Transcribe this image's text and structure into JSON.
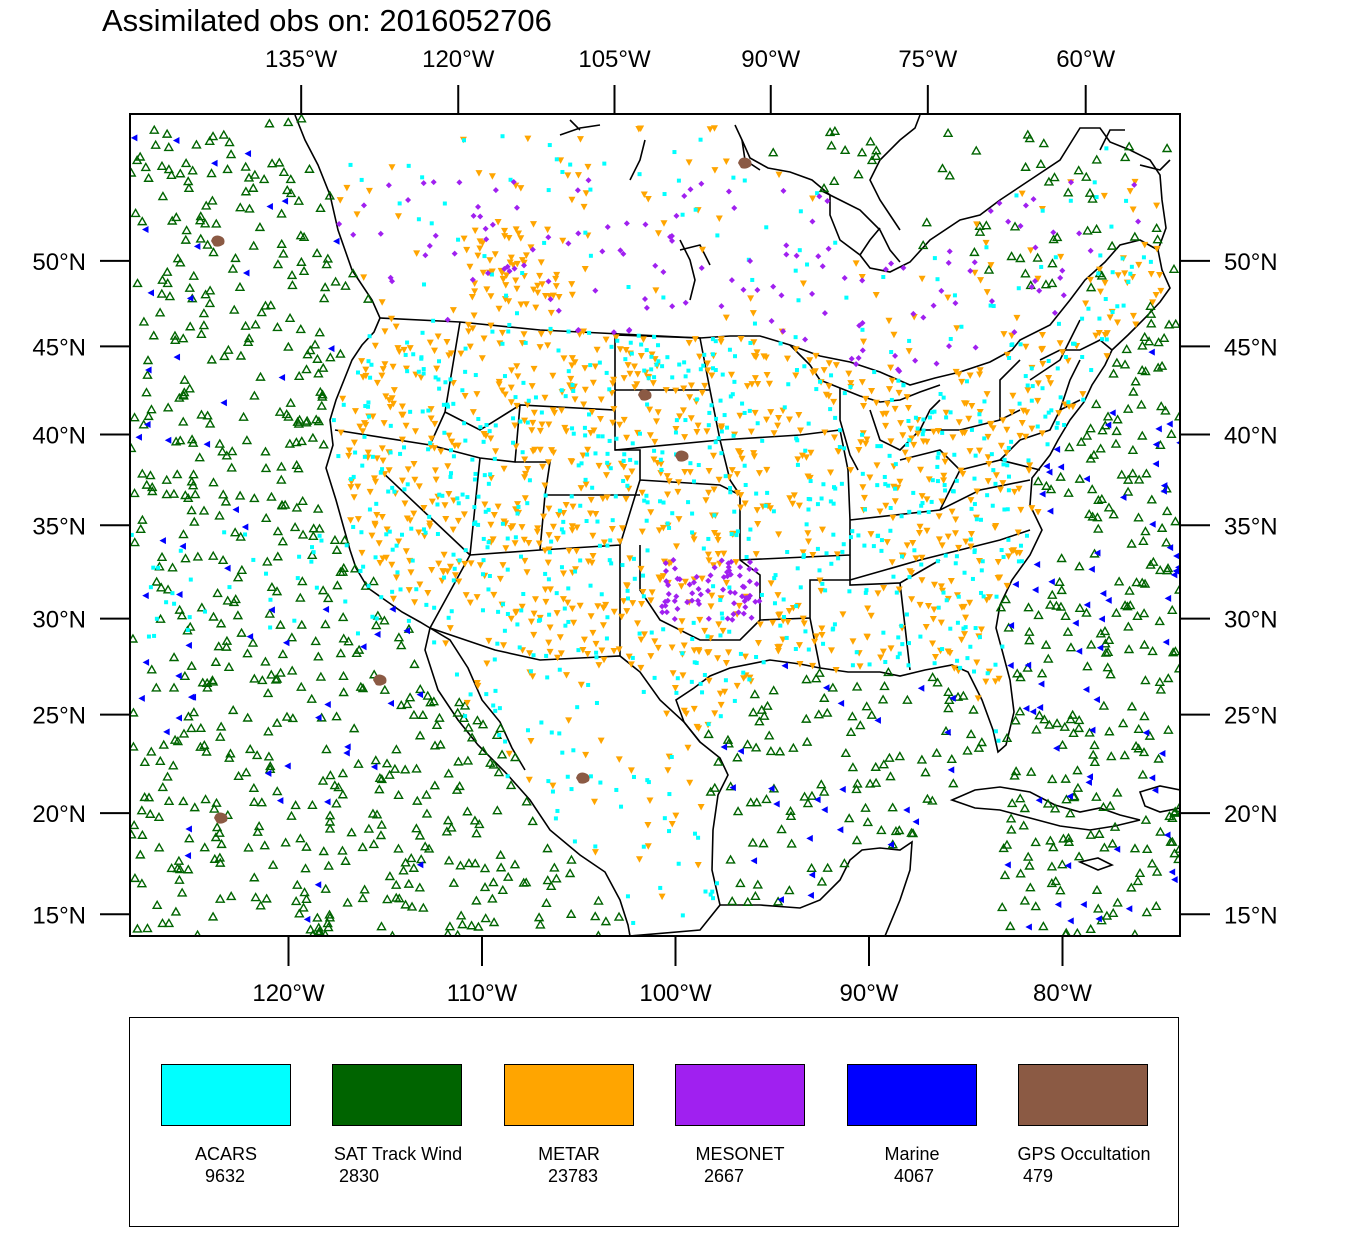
{
  "title": "Assimilated obs on: 2016052706",
  "map": {
    "top_lon_labels": [
      {
        "lon": -135,
        "label": "135°W"
      },
      {
        "lon": -120,
        "label": "120°W"
      },
      {
        "lon": -105,
        "label": "105°W"
      },
      {
        "lon": -90,
        "label": "90°W"
      },
      {
        "lon": -75,
        "label": "75°W"
      },
      {
        "lon": -60,
        "label": "60°W"
      }
    ],
    "bottom_lon_labels": [
      {
        "lon": -120,
        "label": "120°W"
      },
      {
        "lon": -110,
        "label": "110°W"
      },
      {
        "lon": -100,
        "label": "100°W"
      },
      {
        "lon": -90,
        "label": "90°W"
      },
      {
        "lon": -80,
        "label": "80°W"
      }
    ],
    "lat_labels": [
      {
        "lat": 50,
        "label": "50°N"
      },
      {
        "lat": 45,
        "label": "45°N"
      },
      {
        "lat": 40,
        "label": "40°N"
      },
      {
        "lat": 35,
        "label": "35°N"
      },
      {
        "lat": 30,
        "label": "30°N"
      },
      {
        "lat": 25,
        "label": "25°N"
      },
      {
        "lat": 20,
        "label": "20°N"
      },
      {
        "lat": 15,
        "label": "15°N"
      }
    ]
  },
  "legend": [
    {
      "key": "acars",
      "name": "ACARS",
      "count": "9632",
      "color": "#00ffff",
      "marker": "square"
    },
    {
      "key": "sat",
      "name": "SAT Track Wind",
      "count": "2830",
      "color": "#006400",
      "marker": "triangle-up"
    },
    {
      "key": "metar",
      "name": "METAR",
      "count": "23783",
      "color": "#ffa500",
      "marker": "triangle-down"
    },
    {
      "key": "mesonet",
      "name": "MESONET",
      "count": "2667",
      "color": "#a020f0",
      "marker": "diamond"
    },
    {
      "key": "marine",
      "name": "Marine",
      "count": "4067",
      "color": "#0000ff",
      "marker": "triangle-left"
    },
    {
      "key": "gps",
      "name": "GPS Occultation",
      "count": "479",
      "color": "#8b5a44",
      "marker": "blob"
    }
  ],
  "colors": {
    "acars": "#00ffff",
    "sat": "#006400",
    "metar": "#ffa500",
    "mesonet": "#a020f0",
    "marine": "#0000ff",
    "gps": "#8b5a44",
    "coast": "#000000"
  }
}
